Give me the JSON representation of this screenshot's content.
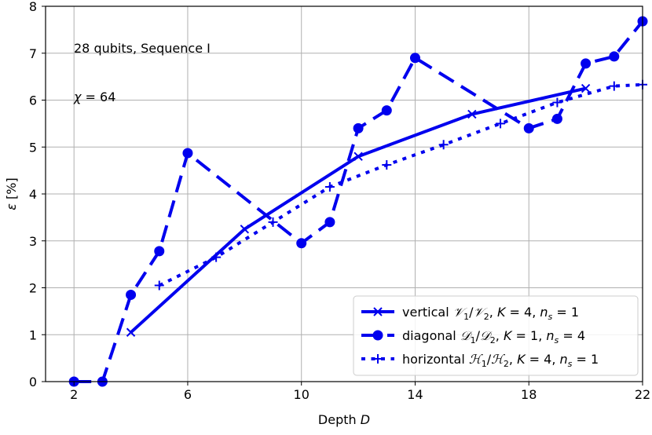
{
  "chart_data": {
    "type": "line",
    "xlabel_text": "Depth",
    "xlabel_var": "D",
    "ylabel_var": "ε",
    "ylabel_unit": "[%]",
    "xlim": [
      1,
      22
    ],
    "ylim": [
      0,
      8
    ],
    "xticks": [
      2,
      6,
      10,
      14,
      18,
      22
    ],
    "yticks": [
      0,
      1,
      2,
      3,
      4,
      5,
      6,
      7,
      8
    ],
    "grid": true,
    "legend_position": "lower-right",
    "color": "#0000ee",
    "annotations": [
      {
        "text": "28 qubits, Sequence I"
      },
      {
        "var": "χ",
        "rest": " = 64"
      }
    ],
    "series": [
      {
        "name": "vertical 𝒱₁/𝒱₂, K = 4, nₛ = 1",
        "legend_parts": {
          "pre": "vertical ",
          "v1": "𝒱",
          "s1": "1",
          "mid": "/",
          "v2": "𝒱",
          "s2": "2",
          "post": ", ",
          "K": "K",
          "kval": " = 4, ",
          "n": "n",
          "nsub": "s",
          "nval": " = 1"
        },
        "style": "solid",
        "marker": "x",
        "x": [
          4,
          8,
          12,
          16,
          20
        ],
        "y": [
          1.05,
          3.25,
          4.8,
          5.7,
          6.25
        ]
      },
      {
        "name": "diagonal 𝒟₁/𝒟₂, K = 1, nₛ = 4",
        "legend_parts": {
          "pre": "diagonal ",
          "v1": "𝒟",
          "s1": "1",
          "mid": "/",
          "v2": "𝒟",
          "s2": "2",
          "post": ", ",
          "K": "K",
          "kval": " = 1, ",
          "n": "n",
          "nsub": "s",
          "nval": " = 4"
        },
        "style": "dashed",
        "marker": "o",
        "x": [
          2,
          3,
          4,
          5,
          6,
          10,
          11,
          12,
          13,
          14,
          18,
          19,
          20,
          21,
          22
        ],
        "y": [
          0.0,
          0.0,
          1.85,
          2.78,
          4.87,
          2.95,
          3.4,
          5.4,
          5.78,
          6.9,
          5.4,
          5.6,
          6.78,
          6.93,
          7.68
        ]
      },
      {
        "name": "horizontal ℋ₁/ℋ₂, K = 4, nₛ = 1",
        "legend_parts": {
          "pre": "horizontal ",
          "v1": "ℋ",
          "s1": "1",
          "mid": "/",
          "v2": "ℋ",
          "s2": "2",
          "post": ", ",
          "K": "K",
          "kval": " = 4, ",
          "n": "n",
          "nsub": "s",
          "nval": " = 1"
        },
        "style": "dotted",
        "marker": "+",
        "x": [
          5,
          7,
          9,
          11,
          13,
          15,
          17,
          19,
          21,
          22
        ],
        "y": [
          2.05,
          2.65,
          3.4,
          4.15,
          4.62,
          5.05,
          5.5,
          5.95,
          6.3,
          6.33
        ]
      }
    ]
  }
}
